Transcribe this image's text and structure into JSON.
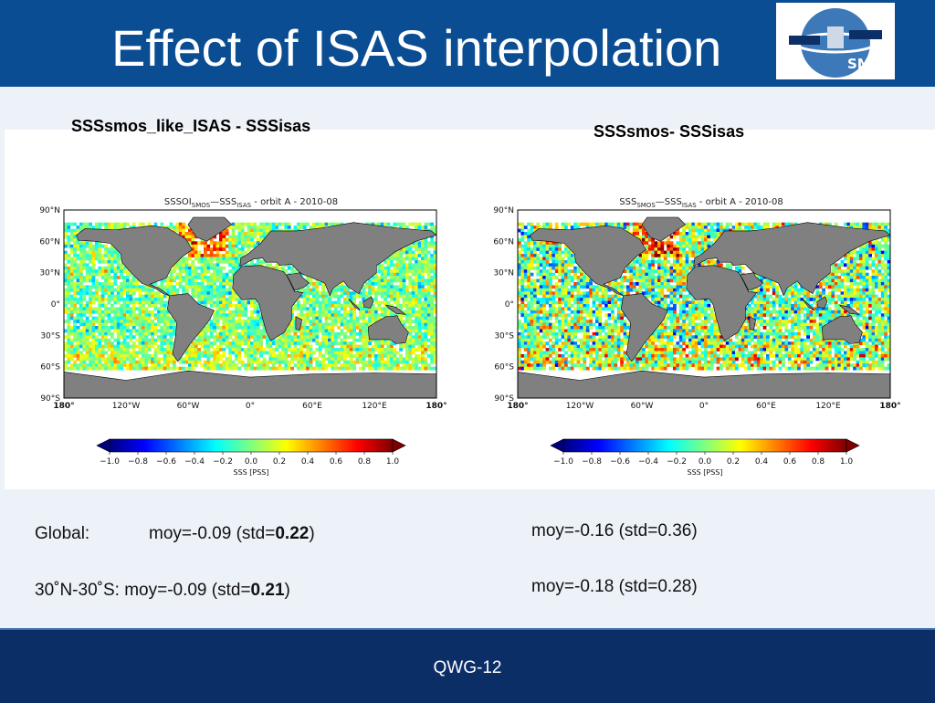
{
  "slide": {
    "title": "Effect of ISAS interpolation",
    "logo_text": "SMOS",
    "footer": "QWG-12"
  },
  "left": {
    "heading": "SSSsmos_like_ISAS - SSSisas",
    "plot_title_prefix": "SSSOI",
    "plot_title_sub1": "SMOS",
    "plot_title_mid": "—SSS",
    "plot_title_sub2": "ISAS",
    "plot_title_suffix": " - orbit A - 2010-08",
    "stats": {
      "global_label": "Global:",
      "global_text": "moy=-0.09 (std=",
      "global_bold": "0.22",
      "global_close": ")",
      "tropics_text": "30˚N-30˚S: moy=-0.09 (std=",
      "tropics_bold": "0.21",
      "tropics_close": ")"
    }
  },
  "right": {
    "heading": "SSSsmos- SSSisas",
    "plot_title_prefix": "SSS",
    "plot_title_sub1": "SMOS",
    "plot_title_mid": "—SSS",
    "plot_title_sub2": "ISAS",
    "plot_title_suffix": " - orbit A - 2010-08",
    "stats": {
      "global_text": "moy=-0.16 (std=0.36)",
      "tropics_text": "moy=-0.18 (std=0.28)"
    }
  },
  "map_axes": {
    "lat_labels": [
      "90°N",
      "60°N",
      "30°N",
      "0°",
      "30°S",
      "60°S",
      "90°S"
    ],
    "lon_labels": [
      "180°",
      "120°W",
      "60°W",
      "0°",
      "60°E",
      "120°E",
      "180°"
    ]
  },
  "colorbar": {
    "ticks": [
      "−1.0",
      "−0.8",
      "−0.6",
      "−0.4",
      "−0.2",
      "0.0",
      "0.2",
      "0.4",
      "0.6",
      "0.8",
      "1.0"
    ],
    "label": "SSS [PSS]",
    "colors": [
      "#00007f",
      "#0000ff",
      "#007fff",
      "#00ffff",
      "#7fff7f",
      "#ffff00",
      "#ff7f00",
      "#ff0000",
      "#7f0000"
    ]
  },
  "colors": {
    "header_bg": "#0b4d93",
    "footer_bg": "#0c2e67",
    "land": "#808080",
    "ocean_none": "#ffffff"
  }
}
